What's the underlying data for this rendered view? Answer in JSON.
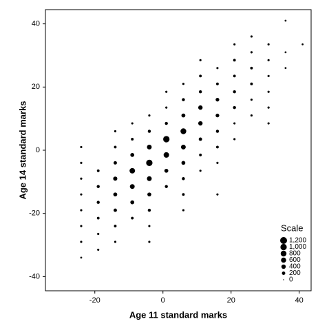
{
  "chart_data": {
    "type": "bubble",
    "xlabel": "Age 11 standard marks",
    "ylabel": "Age 14 standard marks",
    "xlim": [
      -34.5,
      43.5
    ],
    "ylim": [
      -44.5,
      44.5
    ],
    "xticks": [
      -20,
      0,
      20,
      40
    ],
    "yticks": [
      -40,
      -20,
      0,
      20,
      40
    ],
    "color": "#000000",
    "x": [
      -24,
      -24,
      -24,
      -24,
      -24,
      -24,
      -24,
      -24,
      -19,
      -19,
      -19,
      -19,
      -19,
      -19,
      -14,
      -14,
      -14,
      -14,
      -14,
      -14,
      -14,
      -14,
      -9,
      -9,
      -9,
      -9,
      -9,
      -9,
      -9,
      -4,
      -4,
      -4,
      -4,
      -4,
      -4,
      -4,
      -4,
      -4,
      1,
      1,
      1,
      1,
      1,
      1,
      1,
      6,
      6,
      6,
      6,
      6,
      6,
      6,
      6,
      6,
      11,
      11,
      11,
      11,
      11,
      11,
      11,
      11,
      16,
      16,
      16,
      16,
      16,
      16,
      16,
      16,
      21,
      21,
      21,
      21,
      21,
      21,
      21,
      26,
      26,
      26,
      26,
      26,
      26,
      31,
      31,
      31,
      31,
      31,
      31,
      36,
      36,
      36,
      41
    ],
    "y": [
      1,
      -4,
      -9,
      -14,
      -19,
      -24,
      -29,
      -34,
      -6.5,
      -11.5,
      -16.5,
      -21.5,
      -26.5,
      -31.5,
      6,
      1,
      -4,
      -9,
      -14,
      -19,
      -24,
      -29,
      8.5,
      3.5,
      -1.5,
      -6.5,
      -11.5,
      -16.5,
      -21.5,
      11,
      6,
      1,
      -4,
      -9,
      -14,
      -19,
      -24,
      -29,
      18.5,
      13.5,
      8.5,
      3.5,
      -1.5,
      -6.5,
      -11.5,
      21,
      16,
      11,
      6,
      1,
      -4,
      -9,
      -14,
      -19,
      28.5,
      23.5,
      18.5,
      13.5,
      8.5,
      3.5,
      -1.5,
      -6.5,
      26,
      21,
      16,
      11,
      6,
      1,
      -4,
      -14,
      33.5,
      28.5,
      23.5,
      18.5,
      13.5,
      8.5,
      3.5,
      36,
      31,
      26,
      21,
      16,
      11,
      33.5,
      28.5,
      23.5,
      18.5,
      13.5,
      8.5,
      41,
      31,
      26,
      33.5
    ],
    "sizes": [
      50,
      50,
      50,
      50,
      50,
      50,
      50,
      30,
      100,
      150,
      150,
      100,
      50,
      50,
      50,
      100,
      200,
      350,
      300,
      200,
      100,
      50,
      50,
      100,
      300,
      700,
      500,
      300,
      100,
      50,
      150,
      500,
      1000,
      500,
      300,
      150,
      50,
      50,
      50,
      50,
      150,
      1000,
      700,
      300,
      150,
      50,
      150,
      300,
      800,
      500,
      300,
      150,
      100,
      50,
      50,
      100,
      150,
      400,
      400,
      200,
      100,
      50,
      50,
      100,
      250,
      250,
      150,
      100,
      50,
      50,
      50,
      100,
      100,
      150,
      150,
      50,
      50,
      50,
      50,
      100,
      100,
      50,
      50,
      50,
      50,
      50,
      50,
      50,
      50,
      30,
      30,
      30,
      30
    ],
    "legend": {
      "title": "Scale",
      "position": "lower right",
      "values": [
        {
          "value": 1200,
          "label": "1,200"
        },
        {
          "value": 1000,
          "label": "1,000"
        },
        800,
        600,
        400,
        200,
        0
      ]
    }
  }
}
